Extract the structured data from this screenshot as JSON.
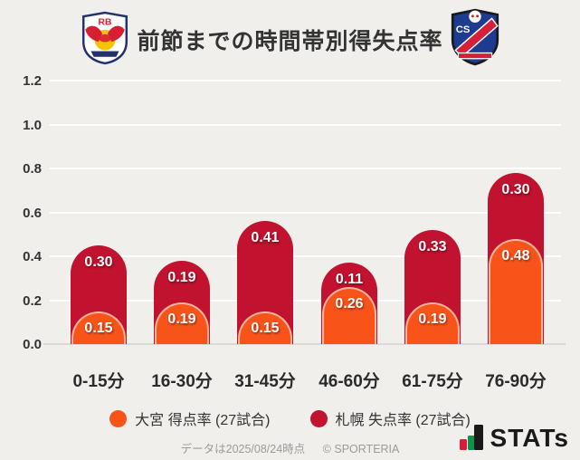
{
  "header": {
    "title": "前節までの時間帯別得失点率",
    "home_crest": "rb-omiya-crest",
    "away_crest": "consadole-sapporo-crest"
  },
  "chart_data": {
    "type": "bar",
    "stacked": true,
    "categories": [
      "0-15分",
      "16-30分",
      "31-45分",
      "46-60分",
      "61-75分",
      "76-90分"
    ],
    "series": [
      {
        "name": "大宮 得点率 (27試合)",
        "color": "#F8541A",
        "values": [
          0.15,
          0.19,
          0.15,
          0.26,
          0.19,
          0.48
        ]
      },
      {
        "name": "札幌 失点率 (27試合)",
        "color": "#C1122F",
        "values": [
          0.3,
          0.19,
          0.41,
          0.11,
          0.33,
          0.3
        ]
      }
    ],
    "title": "前節までの時間帯別得失点率",
    "xlabel": "",
    "ylabel": "",
    "ylim": [
      0,
      1.2
    ],
    "ytick_step": 0.2,
    "ytick_labels": [
      "0.0",
      "0.2",
      "0.4",
      "0.6",
      "0.8",
      "1.0",
      "1.2"
    ],
    "grid": "horizontal-white-lines",
    "legend_position": "bottom"
  },
  "legend": {
    "items": [
      {
        "label": "大宮 得点率 (27試合)",
        "color": "#F8541A"
      },
      {
        "label": "札幌 失点率 (27試合)",
        "color": "#C1122F"
      }
    ]
  },
  "footer": {
    "note": "データは2025/08/24時点",
    "copyright": "© SPORTERIA",
    "brand": "STATs"
  },
  "colors": {
    "background": "#f0efec",
    "orange": "#F8541A",
    "crimson": "#C1122F",
    "gridline": "#ffffff",
    "axis": "#d9d8d4"
  }
}
